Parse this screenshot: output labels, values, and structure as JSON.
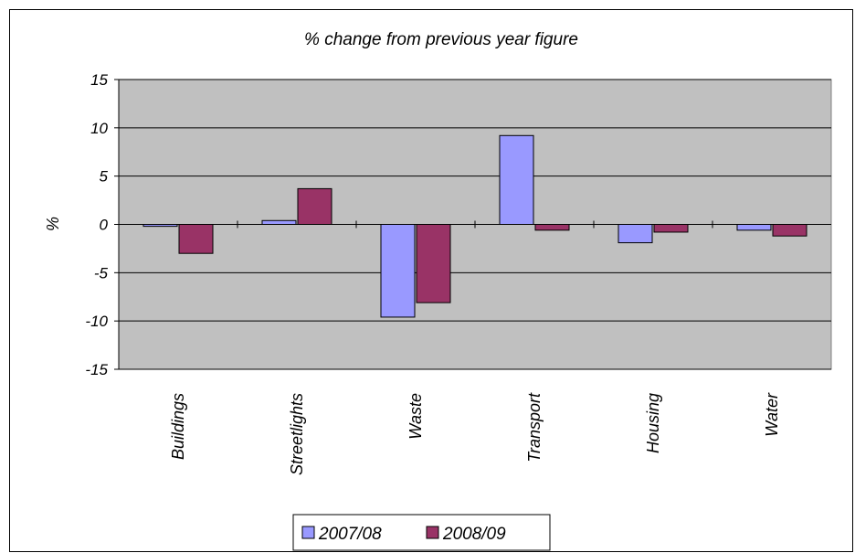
{
  "chart_data": {
    "type": "bar",
    "title": "% change from previous year figure",
    "ylabel": "%",
    "xlabel": "",
    "ylim": [
      -15,
      15
    ],
    "yticks": [
      15,
      10,
      5,
      0,
      -5,
      -10,
      -15
    ],
    "categories": [
      "Buildings",
      "Streetlights",
      "Waste",
      "Transport",
      "Housing",
      "Water"
    ],
    "series": [
      {
        "name": "2007/08",
        "color": "#9999ff",
        "values": [
          -0.2,
          0.4,
          -9.6,
          9.2,
          -1.9,
          -0.6
        ]
      },
      {
        "name": "2008/09",
        "color": "#993366",
        "values": [
          -3.0,
          3.7,
          -8.1,
          -0.6,
          -0.8,
          -1.2
        ]
      }
    ],
    "plot_background": "#c0c0c0",
    "grid": true,
    "legend_position": "bottom"
  }
}
